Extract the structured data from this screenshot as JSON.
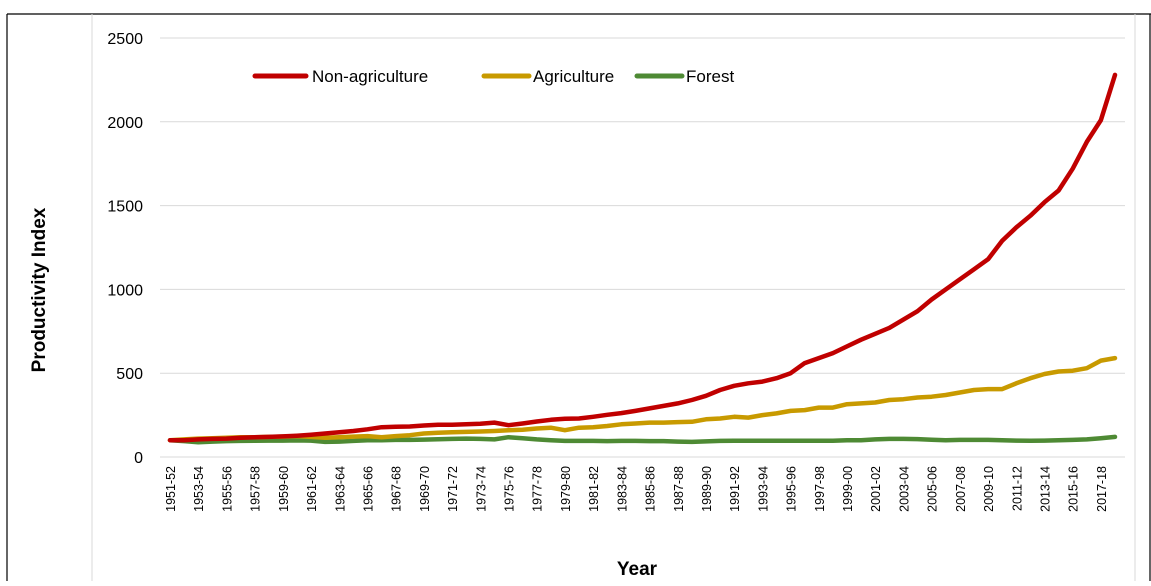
{
  "chart_data": {
    "type": "line",
    "title": "",
    "xlabel": "Year",
    "ylabel": "Productivity Index",
    "ylim": [
      0,
      2500
    ],
    "yticks": [
      0,
      500,
      1000,
      1500,
      2000,
      2500
    ],
    "grid": "horizontal",
    "legend_position": "top-left",
    "x_tick_labels": [
      "1951-52",
      "1953-54",
      "1955-56",
      "1957-58",
      "1959-60",
      "1961-62",
      "1963-64",
      "1965-66",
      "1967-68",
      "1969-70",
      "1971-72",
      "1973-74",
      "1975-76",
      "1977-78",
      "1979-80",
      "1981-82",
      "1983-84",
      "1985-86",
      "1987-88",
      "1989-90",
      "1991-92",
      "1993-94",
      "1995-96",
      "1997-98",
      "1999-00",
      "2001-02",
      "2003-04",
      "2005-06",
      "2007-08",
      "2009-10",
      "2011-12",
      "2013-14",
      "2015-16",
      "2017-18"
    ],
    "categories": [
      "1951-52",
      "1952-53",
      "1953-54",
      "1954-55",
      "1955-56",
      "1956-57",
      "1957-58",
      "1958-59",
      "1959-60",
      "1960-61",
      "1961-62",
      "1962-63",
      "1963-64",
      "1964-65",
      "1965-66",
      "1966-67",
      "1967-68",
      "1968-69",
      "1969-70",
      "1970-71",
      "1971-72",
      "1972-73",
      "1973-74",
      "1974-75",
      "1975-76",
      "1976-77",
      "1977-78",
      "1978-79",
      "1979-80",
      "1980-81",
      "1981-82",
      "1982-83",
      "1983-84",
      "1984-85",
      "1985-86",
      "1986-87",
      "1987-88",
      "1988-89",
      "1989-90",
      "1990-91",
      "1991-92",
      "1992-93",
      "1993-94",
      "1994-95",
      "1995-96",
      "1996-97",
      "1997-98",
      "1998-99",
      "1999-00",
      "2000-01",
      "2001-02",
      "2002-03",
      "2003-04",
      "2004-05",
      "2005-06",
      "2006-07",
      "2007-08",
      "2008-09",
      "2009-10",
      "2010-11",
      "2011-12",
      "2012-13",
      "2013-14",
      "2014-15",
      "2015-16",
      "2016-17",
      "2017-18",
      "2018-19"
    ],
    "series": [
      {
        "name": "Non-agriculture",
        "color": "#c00000",
        "values": [
          100,
          100,
          105,
          108,
          110,
          115,
          118,
          120,
          123,
          127,
          133,
          140,
          148,
          155,
          165,
          178,
          180,
          182,
          188,
          192,
          193,
          195,
          198,
          205,
          190,
          200,
          212,
          222,
          228,
          230,
          240,
          252,
          262,
          275,
          290,
          305,
          320,
          340,
          365,
          400,
          425,
          440,
          450,
          470,
          500,
          560,
          590,
          620,
          660,
          700,
          735,
          770,
          820,
          870,
          940,
          1000,
          1060,
          1120,
          1180,
          1290,
          1370,
          1440,
          1520,
          1590,
          1720,
          1880,
          2010,
          2280
        ]
      },
      {
        "name": "Agriculture",
        "color": "#c89a00",
        "values": [
          100,
          105,
          110,
          112,
          115,
          118,
          118,
          120,
          122,
          125,
          120,
          115,
          118,
          122,
          125,
          118,
          125,
          130,
          140,
          145,
          148,
          150,
          152,
          155,
          160,
          162,
          170,
          175,
          160,
          175,
          178,
          185,
          195,
          200,
          205,
          205,
          208,
          210,
          225,
          230,
          240,
          235,
          250,
          260,
          275,
          280,
          295,
          295,
          315,
          320,
          325,
          340,
          345,
          355,
          360,
          370,
          385,
          400,
          405,
          405,
          440,
          470,
          495,
          510,
          515,
          530,
          575,
          590
        ]
      },
      {
        "name": "Forest",
        "color": "#4e8a34",
        "values": [
          100,
          95,
          88,
          92,
          95,
          96,
          97,
          98,
          98,
          99,
          98,
          90,
          92,
          96,
          100,
          100,
          102,
          102,
          104,
          106,
          108,
          110,
          108,
          105,
          118,
          112,
          105,
          100,
          96,
          96,
          96,
          95,
          96,
          96,
          95,
          95,
          92,
          90,
          93,
          96,
          97,
          97,
          97,
          97,
          97,
          97,
          97,
          97,
          100,
          100,
          105,
          108,
          108,
          107,
          103,
          100,
          102,
          102,
          102,
          100,
          98,
          97,
          98,
          100,
          102,
          105,
          112,
          120
        ]
      }
    ]
  }
}
